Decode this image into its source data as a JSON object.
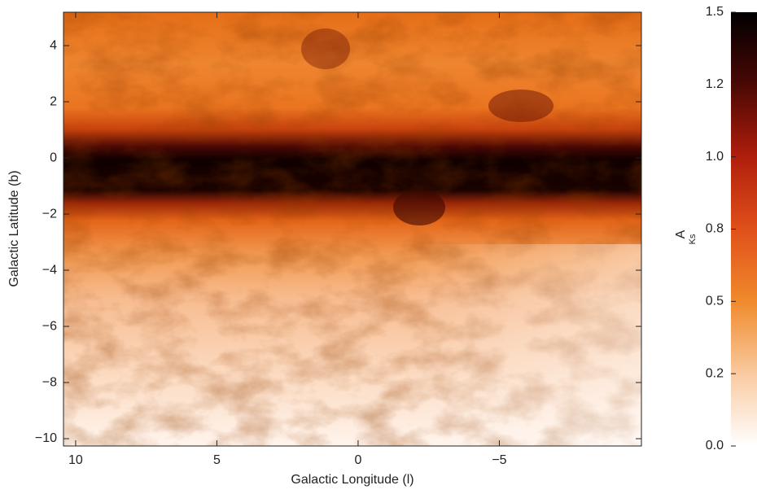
{
  "chart_data": {
    "type": "heatmap",
    "xlabel": "Galactic Longitude (l)",
    "ylabel": "Galactic Latitude (b)",
    "xlim": [
      10.43,
      -10.03
    ],
    "ylim": [
      -10.26,
      5.19
    ],
    "xticks": [
      10,
      5,
      0,
      {
        "value": -5,
        "label": "−5"
      }
    ],
    "yticks": [
      {
        "value": -10,
        "label": "−10"
      },
      {
        "value": -8,
        "label": "−8"
      },
      {
        "value": -6,
        "label": "−6"
      },
      {
        "value": -4,
        "label": "−4"
      },
      {
        "value": -2,
        "label": "−2"
      },
      0,
      2,
      4
    ],
    "colors": [
      "#ffffff",
      "#f9caa0",
      "#f08a2c",
      "#e0501a",
      "#b01e0c",
      "#4a0804",
      "#000000"
    ],
    "colorbar": {
      "label": "A",
      "label_subscript": "Ks",
      "ticks": [
        {
          "value": 0,
          "label": "0.0"
        },
        0.2,
        0.5,
        0.8,
        {
          "value": 1,
          "label": "1.0"
        },
        1.2,
        1.5
      ]
    }
  }
}
